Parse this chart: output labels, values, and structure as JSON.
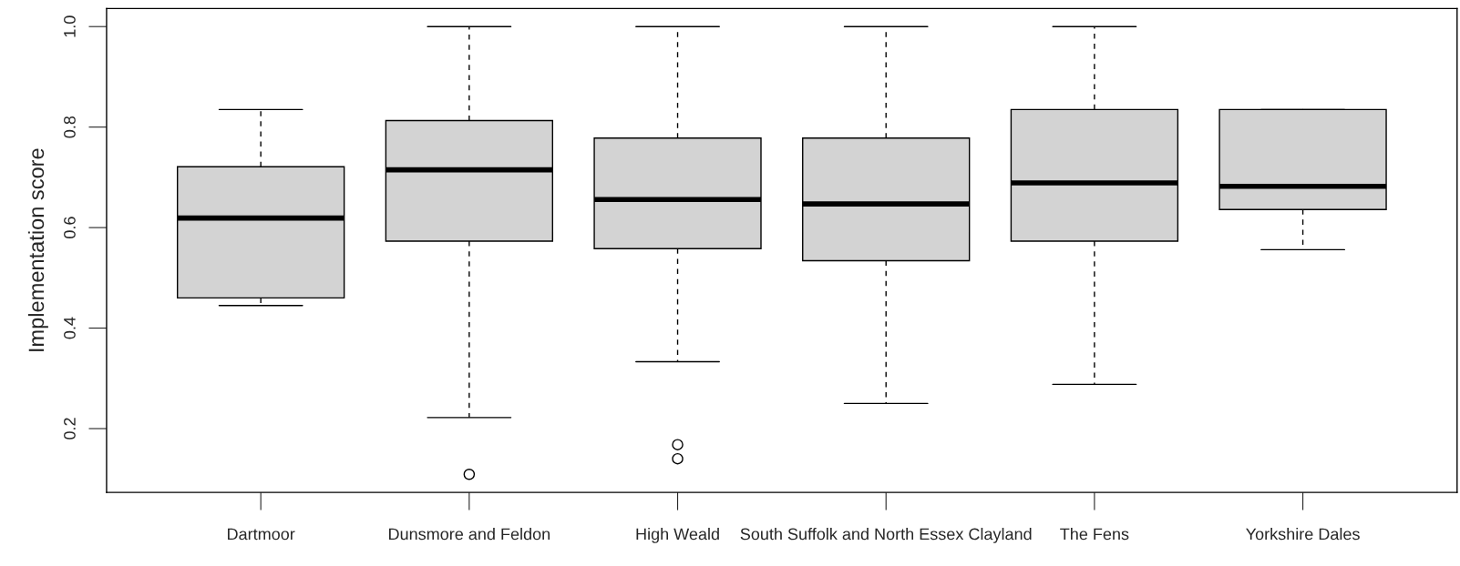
{
  "chart_data": {
    "type": "box",
    "ylabel": "Implementation score",
    "categories": [
      "Dartmoor",
      "Dunsmore and Feldon",
      "High Weald",
      "South Suffolk and North Essex Clayland",
      "The Fens",
      "Yorkshire Dales"
    ],
    "boxes": [
      {
        "low": 0.445,
        "q1": 0.46,
        "median": 0.619,
        "q3": 0.721,
        "high": 0.835
      },
      {
        "low": 0.222,
        "q1": 0.573,
        "median": 0.715,
        "q3": 0.813,
        "high": 1.0,
        "outliers": [
          0.109
        ]
      },
      {
        "low": 0.333,
        "q1": 0.558,
        "median": 0.656,
        "q3": 0.778,
        "high": 1.0,
        "outliers": [
          0.168,
          0.14
        ]
      },
      {
        "low": 0.25,
        "q1": 0.534,
        "median": 0.647,
        "q3": 0.778,
        "high": 1.0
      },
      {
        "low": 0.288,
        "q1": 0.573,
        "median": 0.689,
        "q3": 0.835,
        "high": 1.0
      },
      {
        "low": 0.556,
        "q1": 0.636,
        "median": 0.682,
        "q3": 0.835,
        "high": 0.835
      }
    ],
    "color": "#d3d3d3",
    "ylim": [
      0.073,
      1.036
    ],
    "yticks": [
      0.2,
      0.4,
      0.6,
      0.8,
      {
        "value": 1.0,
        "label": "1.0"
      }
    ],
    "grid": false
  }
}
